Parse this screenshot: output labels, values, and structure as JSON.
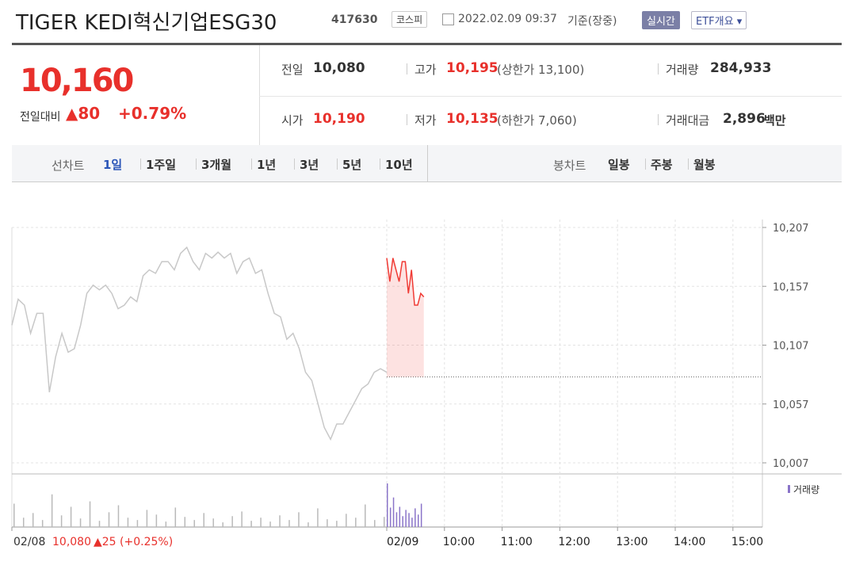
{
  "header": {
    "title": "TIGER KEDI혁신기업ESG30",
    "code": "417630",
    "market": "코스피",
    "datetime": "2022.02.09 09:37",
    "basis": "기준(장중)",
    "realtime_button": "실시간",
    "overview_button": "ETF개요"
  },
  "summary": {
    "price": "10,160",
    "change_label": "전일대비",
    "change": "▲80",
    "change_rate": "+0.79%",
    "items": [
      {
        "label": "전일",
        "value": "10,080"
      },
      {
        "label": "고가",
        "value": "10,195",
        "note": "(상한가 13,100)"
      },
      {
        "label": "거래량",
        "value": "284,933"
      },
      {
        "label": "시가",
        "value": "10,190"
      },
      {
        "label": "저가",
        "value": "10,135",
        "note": "(하한가 7,060)"
      },
      {
        "label": "거래대금",
        "value": "2,896",
        "unit": "백만"
      }
    ]
  },
  "tabs": {
    "line_label": "선차트",
    "line_periods": [
      "1일",
      "1주일",
      "3개월",
      "1년",
      "3년",
      "5년",
      "10년"
    ],
    "candle_label": "봉차트",
    "candle_periods": [
      "일봉",
      "주봉",
      "월봉"
    ]
  },
  "chart_data": {
    "type": "line",
    "ylim": [
      10007,
      10207
    ],
    "yticks": [
      {
        "value": 10207,
        "label": "10,207"
      },
      {
        "value": 10157,
        "label": "10,157"
      },
      {
        "value": 10107,
        "label": "10,107"
      },
      {
        "value": 10057,
        "label": "10,057"
      },
      {
        "value": 10007,
        "label": "10,007"
      }
    ],
    "grid": true,
    "prev_close": 10080,
    "series": [
      {
        "color": "#c8c8c8",
        "values": [
          10124,
          10146,
          10141,
          10117,
          10134,
          10134,
          10067,
          10097,
          10117,
          10101,
          10104,
          10124,
          10151,
          10158,
          10154,
          10158,
          10151,
          10138,
          10141,
          10148,
          10144,
          10166,
          10171,
          10168,
          10178,
          10178,
          10171,
          10185,
          10190,
          10178,
          10171,
          10185,
          10181,
          10186,
          10181,
          10185,
          10168,
          10178,
          10181,
          10168,
          10171,
          10151,
          10134,
          10131,
          10112,
          10117,
          10104,
          10084,
          10077,
          10057,
          10037,
          10027,
          10040,
          10040,
          10050,
          10060,
          10070,
          10074,
          10084,
          10087,
          10084
        ]
      },
      {
        "color": "#f03b35",
        "values": [
          10181,
          10161,
          10181,
          10171,
          10161,
          10178,
          10178,
          10151,
          10171,
          10141,
          10141,
          10151,
          10148
        ]
      }
    ],
    "volume_legend": "거래량",
    "volume": [
      {
        "color": "#b9b9b9",
        "values": [
          3000,
          1200,
          1800,
          900,
          4200,
          1500,
          2600,
          1100,
          3300,
          800,
          1900,
          2800,
          1200,
          900,
          2200,
          1600,
          700,
          2500,
          1300,
          900,
          1800,
          1100,
          600,
          1400,
          2000,
          800,
          1200,
          700,
          1500,
          900,
          1900,
          600,
          2400,
          1000,
          800,
          1700,
          1200,
          2900,
          900,
          1300
        ]
      },
      {
        "color": "#8a74c9",
        "values": [
          5600,
          2500,
          3800,
          1900,
          2600,
          1400,
          2200,
          1800,
          1200,
          2400,
          1600,
          3000
        ]
      }
    ],
    "prev_day": {
      "date": "02/08",
      "close": "10,080",
      "change": "▲25 (+0.25%)"
    },
    "time_labels": [
      "02/09",
      "10:00",
      "11:00",
      "12:00",
      "13:00",
      "14:00",
      "15:00"
    ]
  }
}
